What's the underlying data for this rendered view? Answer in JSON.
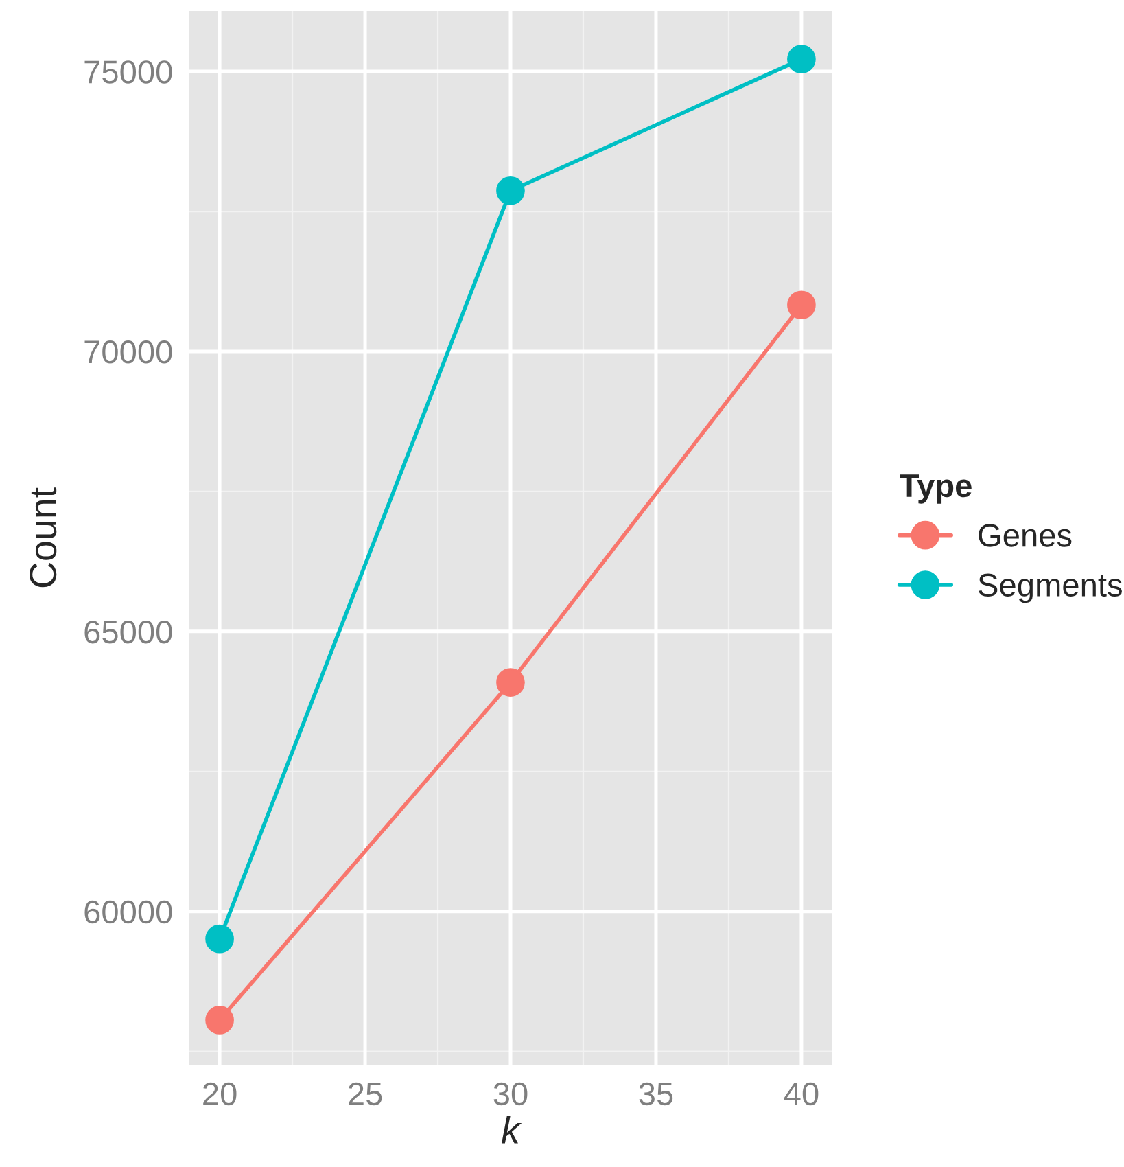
{
  "chart_data": {
    "type": "line",
    "xlabel": "k",
    "ylabel": "Count",
    "legend_title": "Type",
    "x": [
      20,
      30,
      40
    ],
    "series": [
      {
        "name": "Genes",
        "color": "#f8766d",
        "values": [
          58060,
          64090,
          70830
        ]
      },
      {
        "name": "Segments",
        "color": "#00bfc4",
        "values": [
          59510,
          72870,
          75220
        ]
      }
    ],
    "xlim": [
      18.96,
      41.04
    ],
    "xticks": [
      20,
      25,
      30,
      35,
      40
    ],
    "ylim": [
      57250,
      76080
    ],
    "yticks": [
      60000,
      65000,
      70000,
      75000
    ],
    "grid": true,
    "legend": "right",
    "marker": "circle",
    "line_style": "solid"
  }
}
